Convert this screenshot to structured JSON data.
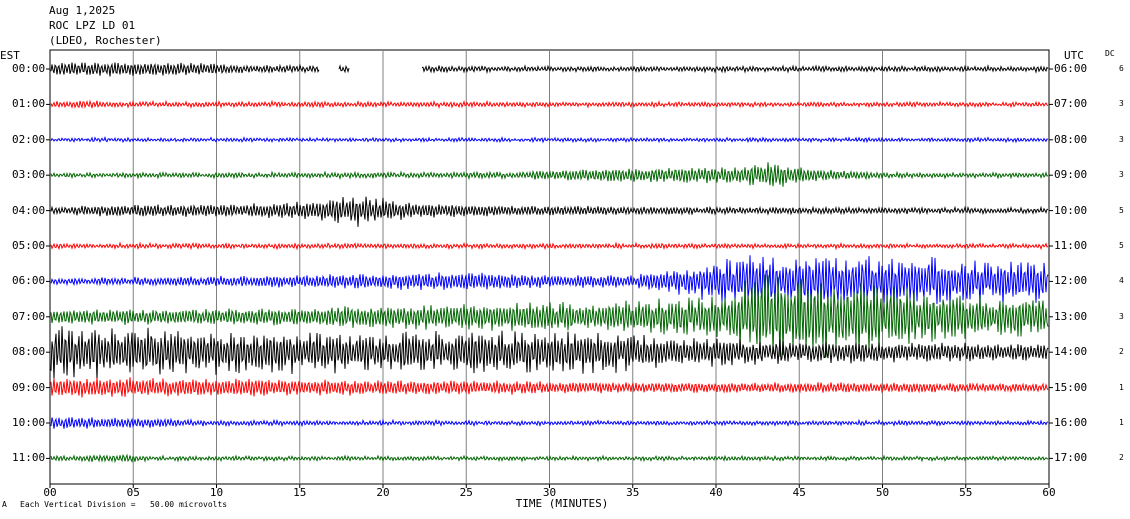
{
  "header": {
    "date": "Aug 1,2025",
    "station": "ROC LPZ LD 01",
    "network": "(LDEO, Rochester)"
  },
  "left_axis_title": "EST",
  "right_axis_title": "UTC",
  "dc_title": "DC",
  "footer": {
    "division_note": "Each Vertical Division =   50.00 microvolts",
    "corner_mark": "A"
  },
  "colors": {
    "black": "#000000",
    "red": "#ff0000",
    "blue": "#0000ff",
    "green": "#006600",
    "grid": "#808080"
  },
  "chart_data": {
    "type": "line",
    "title": "ROC LPZ LD 01",
    "xlabel": "TIME (MINUTES)",
    "ylabel": "",
    "xlim": [
      0,
      60
    ],
    "x_ticks": [
      "00",
      "05",
      "10",
      "15",
      "20",
      "25",
      "30",
      "35",
      "40",
      "45",
      "50",
      "55",
      "60"
    ],
    "grid": "vertical lines every 5 minutes",
    "series": [
      {
        "est": "00:00",
        "utc": "06:00",
        "dc": "6",
        "color": "black",
        "activity": [
          [
            0,
            1.2
          ],
          [
            4,
            1.5
          ],
          [
            9,
            1.2
          ],
          [
            12,
            0.8
          ],
          [
            16,
            0.6
          ],
          [
            22,
            0.6
          ],
          [
            30,
            0.5
          ],
          [
            40,
            0.5
          ],
          [
            60,
            0.5
          ]
        ],
        "gaps": [
          [
            16.2,
            17.3
          ],
          [
            18.0,
            22.3
          ]
        ]
      },
      {
        "est": "01:00",
        "utc": "07:00",
        "dc": "3",
        "color": "red",
        "activity": [
          [
            0,
            0.5
          ],
          [
            2,
            0.8
          ],
          [
            5,
            0.5
          ],
          [
            30,
            0.45
          ],
          [
            60,
            0.4
          ]
        ]
      },
      {
        "est": "02:00",
        "utc": "08:00",
        "dc": "3",
        "color": "blue",
        "activity": [
          [
            0,
            0.35
          ],
          [
            60,
            0.35
          ]
        ]
      },
      {
        "est": "03:00",
        "utc": "09:00",
        "dc": "3",
        "color": "green",
        "activity": [
          [
            0,
            0.4
          ],
          [
            28,
            0.6
          ],
          [
            30,
            1.0
          ],
          [
            36,
            1.5
          ],
          [
            41,
            1.6
          ],
          [
            43,
            2.5
          ],
          [
            46,
            1.2
          ],
          [
            50,
            0.5
          ],
          [
            60,
            0.4
          ]
        ]
      },
      {
        "est": "04:00",
        "utc": "10:00",
        "dc": "5",
        "color": "black",
        "activity": [
          [
            0,
            0.7
          ],
          [
            4,
            1.2
          ],
          [
            10,
            1.2
          ],
          [
            14,
            1.5
          ],
          [
            19,
            3.0
          ],
          [
            22,
            1.5
          ],
          [
            28,
            1.0
          ],
          [
            35,
            0.8
          ],
          [
            40,
            0.7
          ],
          [
            60,
            0.5
          ]
        ]
      },
      {
        "est": "05:00",
        "utc": "11:00",
        "dc": "5",
        "color": "red",
        "activity": [
          [
            0,
            0.5
          ],
          [
            60,
            0.4
          ]
        ]
      },
      {
        "est": "06:00",
        "utc": "12:00",
        "dc": "4",
        "color": "blue",
        "activity": [
          [
            0,
            0.6
          ],
          [
            6,
            0.8
          ],
          [
            25,
            1.8
          ],
          [
            30,
            1.2
          ],
          [
            35,
            1.3
          ],
          [
            38,
            2.5
          ],
          [
            41,
            4.5
          ],
          [
            48,
            5.0
          ],
          [
            55,
            4.2
          ],
          [
            60,
            4.0
          ]
        ]
      },
      {
        "est": "07:00",
        "utc": "13:00",
        "dc": "3",
        "color": "green",
        "activity": [
          [
            0,
            1.5
          ],
          [
            10,
            1.6
          ],
          [
            25,
            2.5
          ],
          [
            35,
            3.0
          ],
          [
            40,
            4.0
          ],
          [
            43,
            8.0
          ],
          [
            48,
            7.0
          ],
          [
            55,
            4.0
          ],
          [
            60,
            3.5
          ]
        ]
      },
      {
        "est": "08:00",
        "utc": "14:00",
        "dc": "2",
        "color": "black",
        "activity": [
          [
            0,
            5.0
          ],
          [
            10,
            4.0
          ],
          [
            20,
            3.5
          ],
          [
            25,
            4.0
          ],
          [
            33,
            3.8
          ],
          [
            40,
            2.5
          ],
          [
            50,
            2.0
          ],
          [
            60,
            1.6
          ]
        ]
      },
      {
        "est": "09:00",
        "utc": "15:00",
        "dc": "1",
        "color": "red",
        "activity": [
          [
            0,
            2.0
          ],
          [
            10,
            1.8
          ],
          [
            20,
            1.5
          ],
          [
            30,
            1.2
          ],
          [
            40,
            1.0
          ],
          [
            50,
            1.0
          ],
          [
            60,
            0.8
          ]
        ]
      },
      {
        "est": "10:00",
        "utc": "16:00",
        "dc": "1",
        "color": "blue",
        "activity": [
          [
            0,
            1.2
          ],
          [
            5,
            1.0
          ],
          [
            10,
            0.5
          ],
          [
            30,
            0.4
          ],
          [
            60,
            0.4
          ]
        ]
      },
      {
        "est": "11:00",
        "utc": "17:00",
        "dc": "2",
        "color": "green",
        "activity": [
          [
            0,
            0.4
          ],
          [
            5,
            0.8
          ],
          [
            6,
            0.4
          ],
          [
            60,
            0.35
          ]
        ]
      }
    ]
  }
}
